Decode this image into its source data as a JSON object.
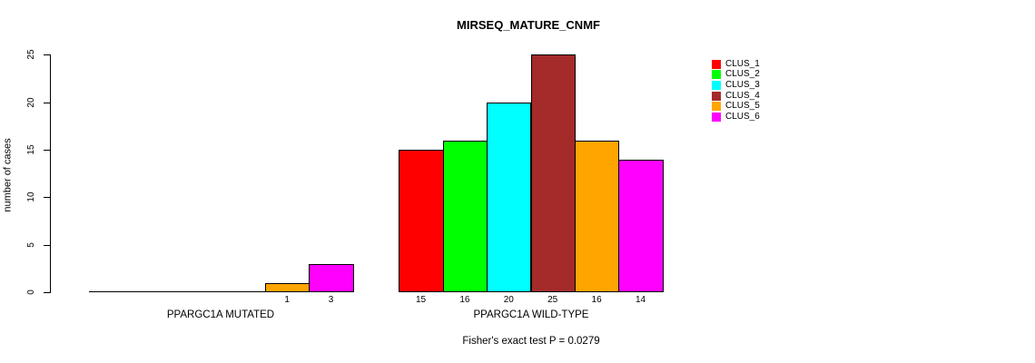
{
  "chart_data": {
    "type": "bar",
    "title": "MIRSEQ_MATURE_CNMF",
    "xlabel": "",
    "ylabel": "number of cases",
    "ylim": [
      0,
      25
    ],
    "yticks": [
      0,
      5,
      10,
      15,
      20,
      25
    ],
    "grid": false,
    "legend_position": "right",
    "categories": [
      "PPARGC1A MUTATED",
      "PPARGC1A WILD-TYPE"
    ],
    "series": [
      {
        "name": "CLUS_1",
        "color": "#FF0000",
        "values": [
          0,
          15
        ]
      },
      {
        "name": "CLUS_2",
        "color": "#00FF00",
        "values": [
          0,
          16
        ]
      },
      {
        "name": "CLUS_3",
        "color": "#00FFFF",
        "values": [
          0,
          20
        ]
      },
      {
        "name": "CLUS_4",
        "color": "#A52A2A",
        "values": [
          0,
          25
        ]
      },
      {
        "name": "CLUS_5",
        "color": "#FFA500",
        "values": [
          1,
          16
        ]
      },
      {
        "name": "CLUS_6",
        "color": "#FF00FF",
        "values": [
          3,
          14
        ]
      }
    ],
    "bar_value_labels": {
      "PPARGC1A MUTATED": [
        "1",
        "3"
      ],
      "PPARGC1A WILD-TYPE": [
        "15",
        "16",
        "20",
        "25",
        "16",
        "14"
      ]
    },
    "annotation": "Fisher's exact test P = 0.0279",
    "axis_color": "#000000",
    "bar_border_color": "#000000"
  }
}
